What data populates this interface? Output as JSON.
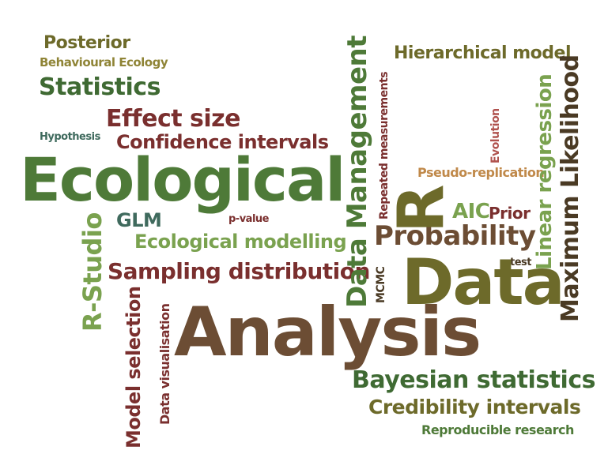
{
  "words": {
    "posterior": "Posterior",
    "behavioural_ecology": "Behavioural Ecology",
    "statistics": "Statistics",
    "effect_size": "Effect size",
    "hypothesis": "Hypothesis",
    "confidence_intervals": "Confidence intervals",
    "ecological": "Ecological",
    "data_management": "Data Management",
    "repeated_measurements": "Repeated measurements",
    "hierarchical_model": "Hierarchical model",
    "evolution": "Evolution",
    "linear_regression": "Linear regression",
    "maximum_likelihood": "Maximum Likelihood",
    "pseudo_replication": "Pseudo-replication",
    "r": "R",
    "aic": "AIC",
    "prior": "Prior",
    "glm": "GLM",
    "p_value": "p-value",
    "r_studio": "R-Studio",
    "ecological_modelling": "Ecological modelling",
    "probability": "Probability",
    "test": "test",
    "mcmc": "MCMC",
    "sampling_distribution": "Sampling distribution",
    "data": "Data",
    "model_selection": "Model selection",
    "data_visualisation": "Data visualisation",
    "analysis": "Analysis",
    "bayesian_statistics": "Bayesian statistics",
    "credibility_intervals": "Credibility intervals",
    "reproducible_research": "Reproducible research"
  },
  "colors": {
    "olive": "#6d6a2a",
    "khaki": "#8f8436",
    "dark_green": "#3f6a33",
    "mid_green": "#4e7a38",
    "light_green": "#7aa24f",
    "teal": "#3f6a5d",
    "maroon": "#7a2f2e",
    "brown": "#6c4d34",
    "dark_brown": "#4a3a24",
    "orange": "#c0894a",
    "rose": "#b0524e"
  }
}
